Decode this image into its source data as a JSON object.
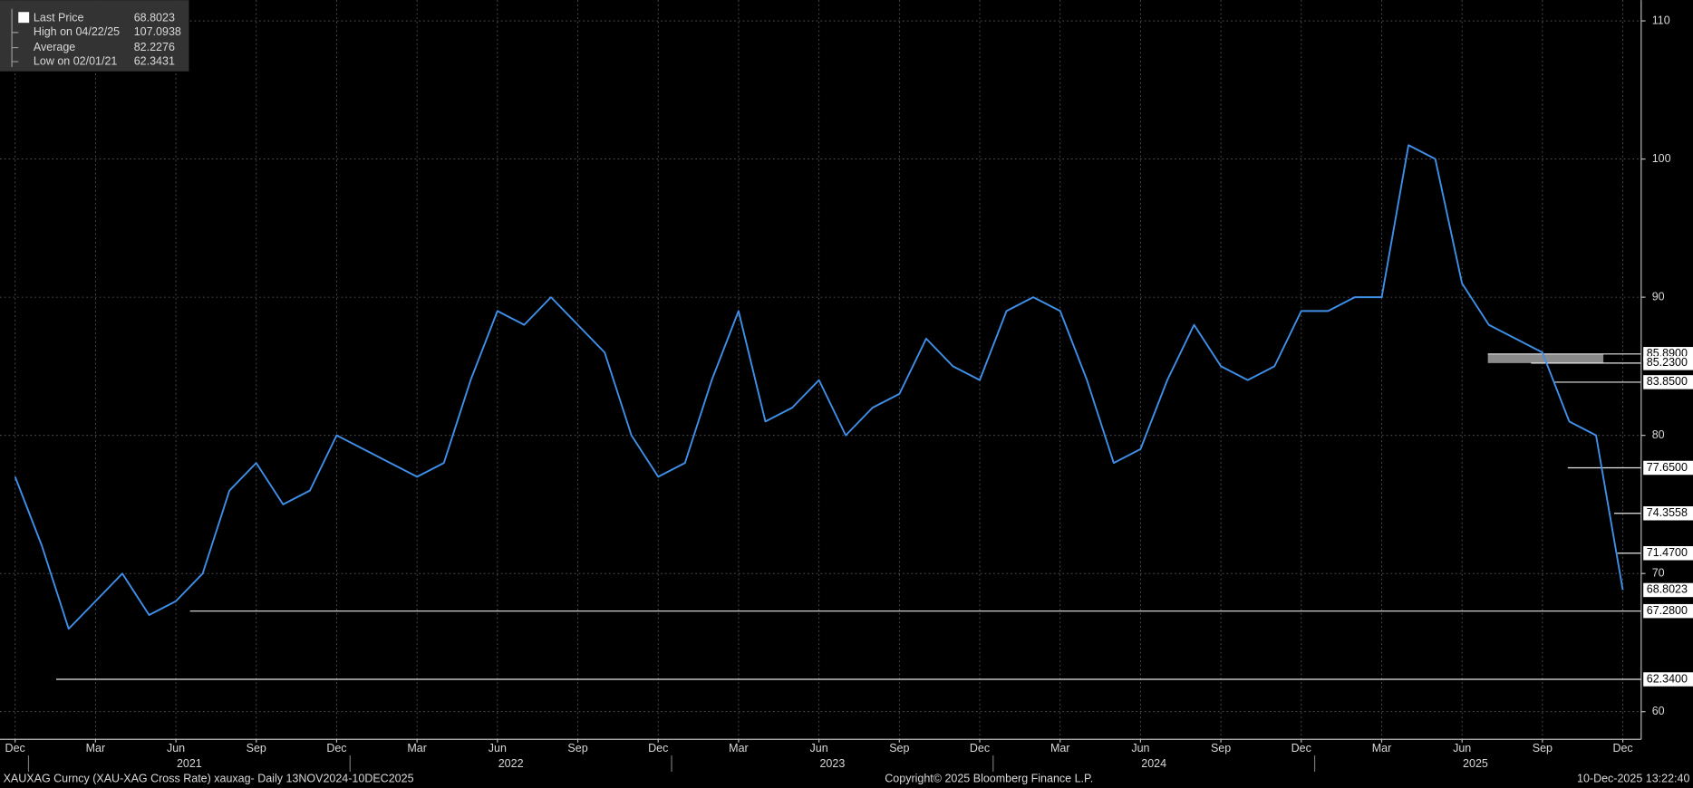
{
  "chart_data": {
    "type": "line",
    "categories": [
      "Dec",
      null,
      null,
      "Mar",
      null,
      null,
      "Jun",
      null,
      null,
      "Sep",
      null,
      null,
      "Dec",
      null,
      null,
      "Mar",
      null,
      null,
      "Jun",
      null,
      null,
      "Sep",
      null,
      null,
      "Dec",
      null,
      null,
      "Mar",
      null,
      null,
      "Jun",
      null,
      null,
      "Sep",
      null,
      null,
      "Dec",
      null,
      null,
      "Mar",
      null,
      null,
      "Jun",
      null,
      null,
      "Sep",
      null,
      null,
      "Dec",
      null,
      null,
      "Mar",
      null,
      null,
      "Jun",
      null,
      null,
      "Sep",
      null,
      null,
      "Dec"
    ],
    "year_labels": [
      "2021",
      "2022",
      "2023",
      "2024",
      "2025"
    ],
    "series": [
      {
        "color": "#3f8fe8",
        "values": [
          77,
          72,
          66,
          68,
          70,
          67,
          68,
          70,
          76,
          78,
          75,
          76,
          80,
          79,
          78,
          77,
          78,
          84,
          89,
          88,
          90,
          88,
          86,
          80,
          77,
          78,
          84,
          89,
          81,
          82,
          84,
          80,
          82,
          83,
          87,
          85,
          84,
          89,
          90,
          89,
          84,
          78,
          79,
          84,
          88,
          85,
          84,
          85,
          89,
          89,
          90,
          90,
          101,
          100,
          91,
          88,
          87,
          86,
          81,
          80,
          68.8023
        ]
      }
    ],
    "ylim": [
      58,
      111.5
    ],
    "yticks": [
      60,
      70,
      80,
      90,
      100,
      110
    ],
    "grid": true,
    "legend": [
      {
        "label": "Last Price",
        "value": 68.8023
      },
      {
        "label": "High on 04/22/25",
        "value": 107.0938
      },
      {
        "label": "Average",
        "value": 82.2276
      },
      {
        "label": "Low on 02/01/21",
        "value": 62.3431
      }
    ],
    "levels": [
      {
        "value": 85.89,
        "label": "85.8900"
      },
      {
        "value": 85.23,
        "label": "85.2300"
      },
      {
        "value": 83.85,
        "label": "83.8500"
      },
      {
        "value": 77.65,
        "label": "77.6500"
      },
      {
        "value": 74.3558,
        "label": "74.3558"
      },
      {
        "value": 71.47,
        "label": "71.4700"
      },
      {
        "value": 67.28,
        "label": "67.2800"
      },
      {
        "value": 62.34,
        "label": "62.3400"
      }
    ],
    "footer": {
      "left": "XAUXAG Curncy (XAU-XAG Cross Rate) xauxag- Daily 13NOV2024-10DEC2025",
      "center": "Copyright© 2025 Bloomberg Finance L.P.",
      "right": "10-Dec-2025 13:22:40"
    }
  }
}
